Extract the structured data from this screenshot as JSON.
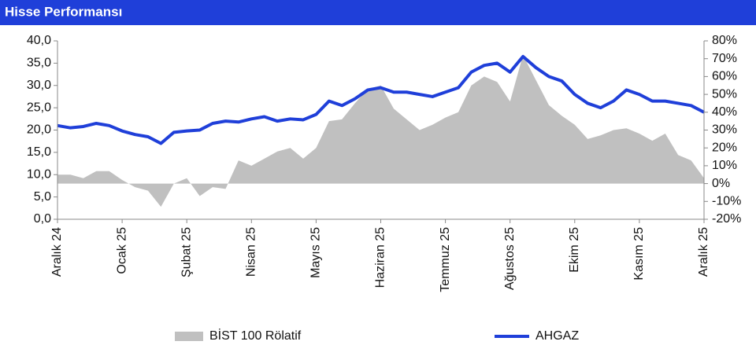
{
  "chart_data": {
    "type": "line",
    "title": "Hisse Performansı",
    "categories": [
      "Aralık 24",
      null,
      null,
      null,
      null,
      "Ocak 25",
      null,
      null,
      null,
      null,
      "Şubat 25",
      null,
      null,
      null,
      null,
      "Nisan 25",
      null,
      null,
      null,
      null,
      "Mayıs 25",
      null,
      null,
      null,
      null,
      "Haziran 25",
      null,
      null,
      null,
      null,
      "Temmuz 25",
      null,
      null,
      null,
      null,
      "Ağustos 25",
      null,
      null,
      null,
      null,
      "Ekim 25",
      null,
      null,
      null,
      null,
      "Kasım 25",
      null,
      null,
      null,
      null,
      "Aralık 25"
    ],
    "series": [
      {
        "name": "BİST 100 Rölatif",
        "color": "#c0c0c0",
        "axis": "y2",
        "kind": "area",
        "values": [
          5,
          5,
          3,
          7,
          7,
          2,
          -2,
          -4,
          -13,
          0,
          3,
          -7,
          -2,
          -3,
          13,
          10,
          14,
          18,
          20,
          14,
          20,
          35,
          36,
          45,
          53,
          55,
          42,
          36,
          30,
          33,
          37,
          40,
          55,
          60,
          57,
          46,
          72,
          58,
          44,
          38,
          33,
          25,
          27,
          30,
          31,
          28,
          24,
          28,
          16,
          13,
          3
        ]
      },
      {
        "name": "AHGAZ",
        "color": "#1f3fd9",
        "kind": "line",
        "values": [
          21,
          20.5,
          20.8,
          21.5,
          21,
          19.8,
          19,
          18.5,
          17,
          19.5,
          19.8,
          20,
          21.5,
          22,
          21.8,
          22.5,
          23,
          22,
          22.5,
          22.3,
          23.5,
          26.5,
          25.5,
          27,
          29,
          29.5,
          28.5,
          28.5,
          28,
          27.5,
          28.5,
          29.5,
          33,
          34.5,
          35,
          33,
          36.5,
          34,
          32,
          31,
          28,
          26,
          25,
          26.5,
          29,
          28,
          26.5,
          26.5,
          26,
          25.5,
          24
        ]
      }
    ],
    "ylim": [
      0,
      40
    ],
    "yticks": [
      {
        "value": 0,
        "label": "0,0"
      },
      {
        "value": 5,
        "label": "5,0"
      },
      {
        "value": 10,
        "label": "10,0"
      },
      {
        "value": 15,
        "label": "15,0"
      },
      {
        "value": 20,
        "label": "20,0"
      },
      {
        "value": 25,
        "label": "25,0"
      },
      {
        "value": 30,
        "label": "30,0"
      },
      {
        "value": 35,
        "label": "35,0"
      },
      {
        "value": 40,
        "label": "40,0"
      }
    ],
    "y2lim": [
      -20,
      80
    ],
    "y2ticks": [
      {
        "value": -20,
        "label": "-20%"
      },
      {
        "value": -10,
        "label": "-10%"
      },
      {
        "value": 0,
        "label": "0%"
      },
      {
        "value": 10,
        "label": "10%"
      },
      {
        "value": 20,
        "label": "20%"
      },
      {
        "value": 30,
        "label": "30%"
      },
      {
        "value": 40,
        "label": "40%"
      },
      {
        "value": 50,
        "label": "50%"
      },
      {
        "value": 60,
        "label": "60%"
      },
      {
        "value": 70,
        "label": "70%"
      },
      {
        "value": 80,
        "label": "80%"
      }
    ],
    "header_color": "#1f3fd9"
  }
}
